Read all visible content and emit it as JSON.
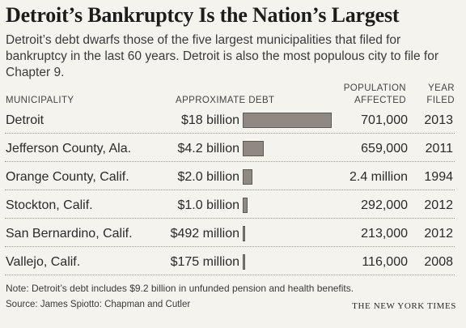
{
  "title": "Detroit’s Bankruptcy Is the Nation’s Largest",
  "subtitle": "Detroit’s debt dwarfs those of the five largest municipalities that filed for bankruptcy in the last 60 years. Detroit is also the most populous city to file for Chapter 9.",
  "headers": {
    "municipality": "Municipality",
    "debt": "Approximate debt",
    "population": "Population affected",
    "year": "Year filed"
  },
  "note": "Note: Detroit’s debt includes $9.2 billion in unfunded pension and health benefits.",
  "source": "Source: James Spiotto: Chapman and Cutler",
  "credit": "THE NEW YORK TIMES",
  "colors": {
    "bar_fill": "#8f8883",
    "bar_border": "#5f5954"
  },
  "chart_data": {
    "type": "table",
    "title": "Detroit’s Bankruptcy Is the Nation’s Largest",
    "columns": [
      "Municipality",
      "Approximate debt",
      "Population affected",
      "Year filed"
    ],
    "unit": "billion dollars",
    "rows": [
      {
        "municipality": "Detroit",
        "debt_label": "$18 billion",
        "debt_value": 18,
        "population": "701,000",
        "year": "2013"
      },
      {
        "municipality": "Jefferson County, Ala.",
        "debt_label": "$4.2 billion",
        "debt_value": 4.2,
        "population": "659,000",
        "year": "2011"
      },
      {
        "municipality": "Orange County, Calif.",
        "debt_label": "$2.0 billion",
        "debt_value": 2.0,
        "population": "2.4 million",
        "year": "1994"
      },
      {
        "municipality": "Stockton, Calif.",
        "debt_label": "$1.0 billion",
        "debt_value": 1.0,
        "population": "292,000",
        "year": "2012"
      },
      {
        "municipality": "San Bernardino, Calif.",
        "debt_label": "$492 million",
        "debt_value": 0.492,
        "population": "213,000",
        "year": "2012"
      },
      {
        "municipality": "Vallejo, Calif.",
        "debt_label": "$175 million",
        "debt_value": 0.175,
        "population": "116,000",
        "year": "2008"
      }
    ]
  }
}
